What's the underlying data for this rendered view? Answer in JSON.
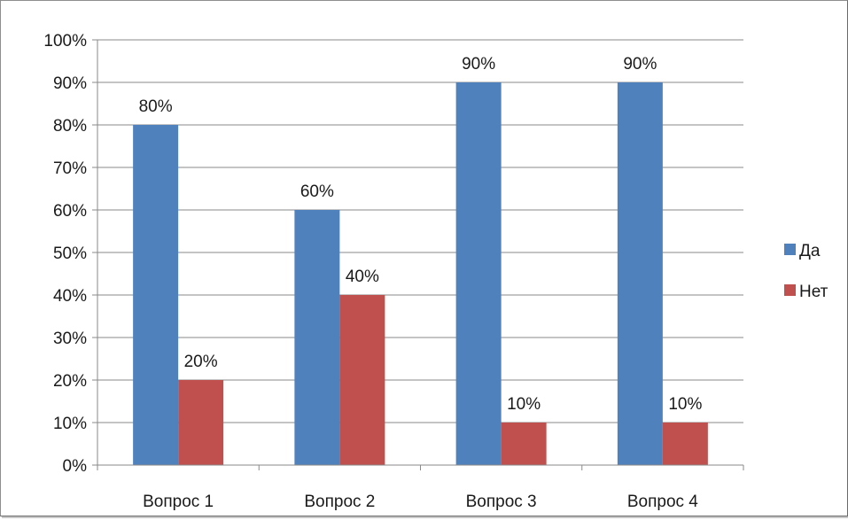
{
  "chart_data": {
    "type": "bar",
    "title": "",
    "xlabel": "",
    "ylabel": "",
    "categories": [
      "Вопрос 1",
      "Вопрос 2",
      "Вопрос 3",
      "Вопрос 4"
    ],
    "series": [
      {
        "name": "Да",
        "color": "#4f81bd",
        "values": [
          80,
          60,
          90,
          90
        ],
        "labels": [
          "80%",
          "60%",
          "90%",
          "90%"
        ]
      },
      {
        "name": "Нет",
        "color": "#c0504d",
        "values": [
          20,
          40,
          10,
          10
        ],
        "labels": [
          "20%",
          "40%",
          "10%",
          "10%"
        ]
      }
    ],
    "ylim": [
      0,
      100
    ],
    "yticks": [
      0,
      10,
      20,
      30,
      40,
      50,
      60,
      70,
      80,
      90,
      100
    ],
    "ytick_labels": [
      "0%",
      "10%",
      "20%",
      "30%",
      "40%",
      "50%",
      "60%",
      "70%",
      "80%",
      "90%",
      "100%"
    ],
    "grid": true,
    "legend_position": "right"
  }
}
